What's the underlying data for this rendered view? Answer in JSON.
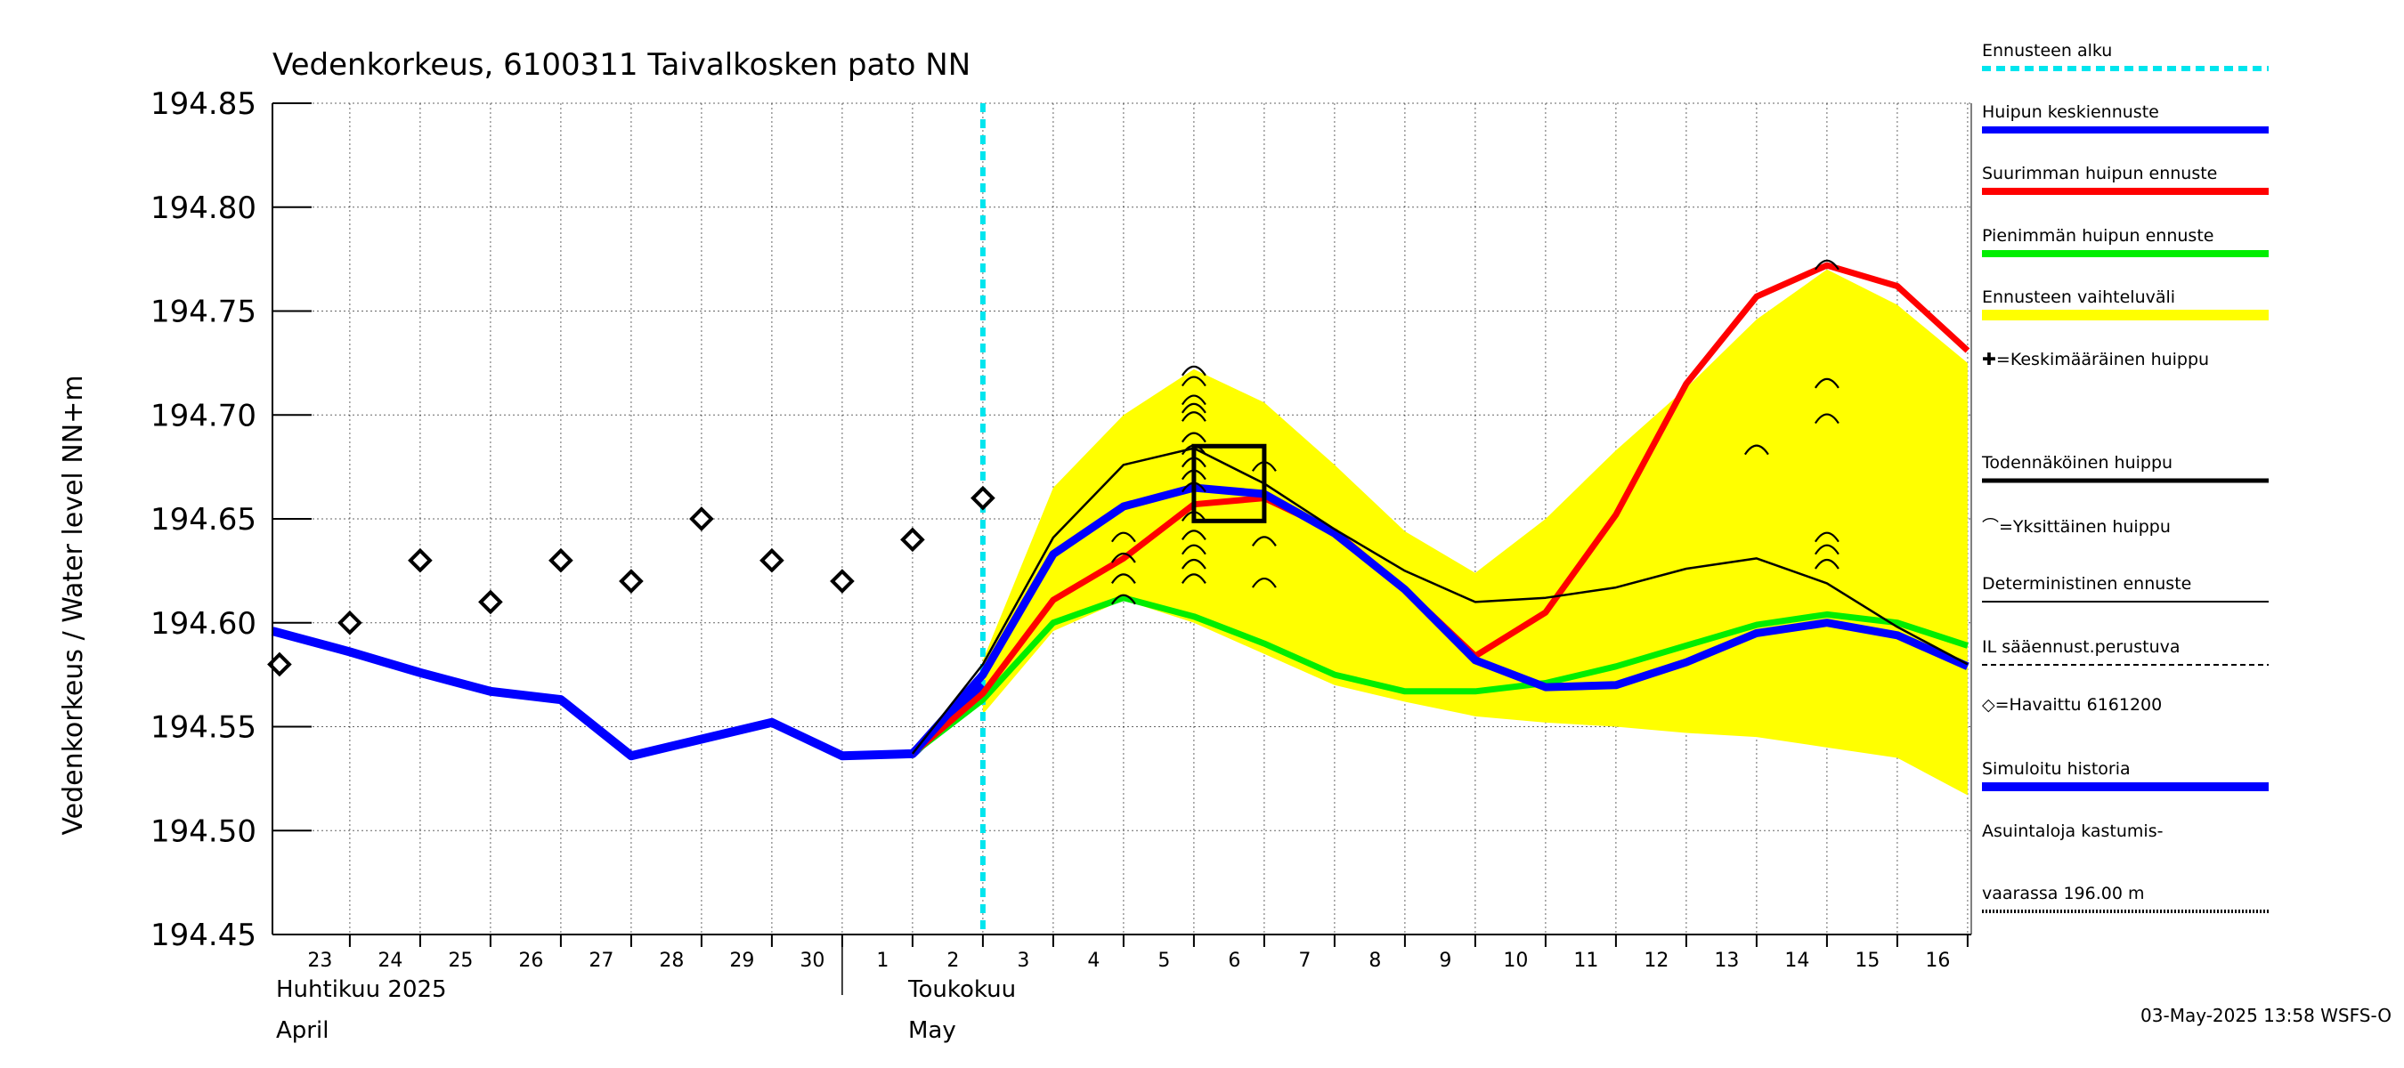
{
  "chart_data": {
    "type": "line",
    "title": "Vedenkorkeus, 6100311 Taivalkosken pato NN",
    "ylabel": "Vedenkorkeus / Water level   NN+m",
    "ylim": [
      194.45,
      194.85
    ],
    "yticks": [
      "194.45",
      "194.50",
      "194.55",
      "194.60",
      "194.65",
      "194.70",
      "194.75",
      "194.80",
      "194.85"
    ],
    "x_range_days": [
      -0.1,
      24.0
    ],
    "x_tick_labels": [
      "23",
      "24",
      "25",
      "26",
      "27",
      "28",
      "29",
      "30",
      "1",
      "2",
      "3",
      "4",
      "5",
      "6",
      "7",
      "8",
      "9",
      "10",
      "11",
      "12",
      "13",
      "14",
      "15",
      "16"
    ],
    "months": [
      {
        "fi": "Huhtikuu  2025",
        "en": "April"
      },
      {
        "fi": "Toukokuu",
        "en": "May"
      }
    ],
    "forecast_start_day": 10.0,
    "grid": true,
    "legend_position": "right",
    "series": [
      {
        "name": "Ennusteen vaihteluväli",
        "kind": "band",
        "color": "#ffff00",
        "x": [
          10.0,
          11.0,
          12.0,
          13.0,
          14.0,
          15.0,
          16.0,
          17.0,
          18.0,
          19.0,
          20.0,
          21.0,
          22.0,
          23.0,
          24.0
        ],
        "upper": [
          194.582,
          194.665,
          194.7,
          194.722,
          194.706,
          194.676,
          194.644,
          194.624,
          194.65,
          194.683,
          194.713,
          194.746,
          194.77,
          194.753,
          194.725
        ],
        "lower": [
          194.556,
          194.596,
          194.611,
          194.6,
          194.585,
          194.57,
          194.562,
          194.555,
          194.552,
          194.55,
          194.547,
          194.545,
          194.54,
          194.535,
          194.517
        ]
      },
      {
        "name": "Simuloitu historia",
        "kind": "line",
        "color": "#0000ff",
        "x": [
          -0.1,
          1.0,
          2.0,
          3.0,
          4.0,
          5.0,
          6.0,
          7.0,
          8.0,
          9.0,
          10.0
        ],
        "y": [
          194.596,
          194.586,
          194.576,
          194.567,
          194.563,
          194.536,
          194.544,
          194.552,
          194.536,
          194.537,
          194.57
        ]
      },
      {
        "name": "Suurimman huipun ennuste",
        "kind": "line",
        "color": "#ff0000",
        "x": [
          9.0,
          10.0,
          11.0,
          12.0,
          13.0,
          14.0,
          15.0,
          16.0,
          17.0,
          18.0,
          19.0,
          20.0,
          21.0,
          22.0,
          23.0,
          24.0
        ],
        "y": [
          194.537,
          194.566,
          194.611,
          194.631,
          194.657,
          194.66,
          194.644,
          194.616,
          194.584,
          194.605,
          194.652,
          194.715,
          194.757,
          194.772,
          194.762,
          194.731
        ]
      },
      {
        "name": "Pienimmän huipun ennuste",
        "kind": "line",
        "color": "#00ee00",
        "x": [
          9.0,
          10.0,
          11.0,
          12.0,
          13.0,
          14.0,
          15.0,
          16.0,
          17.0,
          18.0,
          19.0,
          20.0,
          21.0,
          22.0,
          23.0,
          24.0
        ],
        "y": [
          194.537,
          194.563,
          194.6,
          194.612,
          194.603,
          194.59,
          194.575,
          194.567,
          194.567,
          194.571,
          194.579,
          194.589,
          194.599,
          194.604,
          194.6,
          194.589
        ]
      },
      {
        "name": "Huipun keskiennuste",
        "kind": "line",
        "color": "#0000ff",
        "x": [
          9.0,
          10.0,
          11.0,
          12.0,
          13.0,
          14.0,
          15.0,
          16.0,
          17.0,
          18.0,
          19.0,
          20.0,
          21.0,
          22.0,
          23.0,
          24.0
        ],
        "y": [
          194.537,
          194.575,
          194.633,
          194.656,
          194.665,
          194.662,
          194.643,
          194.616,
          194.582,
          194.569,
          194.57,
          194.581,
          194.595,
          194.6,
          194.594,
          194.579
        ]
      },
      {
        "name": "Deterministinen ennuste",
        "kind": "line",
        "color": "#000000",
        "x": [
          9.0,
          10.0,
          11.0,
          12.0,
          13.0,
          14.0,
          15.0,
          16.0,
          17.0,
          18.0,
          19.0,
          20.0,
          21.0,
          22.0,
          23.0,
          24.0
        ],
        "y": [
          194.537,
          194.58,
          194.641,
          194.676,
          194.684,
          194.667,
          194.645,
          194.625,
          194.61,
          194.612,
          194.617,
          194.626,
          194.631,
          194.619,
          194.598,
          194.58
        ]
      },
      {
        "name": "=Havaittu 6161200",
        "kind": "markers",
        "marker": "diamond",
        "color": "#000000",
        "x": [
          0.0,
          1.0,
          2.0,
          3.0,
          4.0,
          5.0,
          6.0,
          7.0,
          8.0,
          9.0,
          10.0
        ],
        "y": [
          194.58,
          194.6,
          194.63,
          194.61,
          194.63,
          194.62,
          194.65,
          194.63,
          194.62,
          194.64,
          194.66
        ]
      },
      {
        "name": "=Yksittäinen huippu",
        "kind": "markers",
        "marker": "arc",
        "color": "#000000",
        "x": [
          12.0,
          12.0,
          12.0,
          12.0,
          13.0,
          13.0,
          13.0,
          13.0,
          13.0,
          13.0,
          13.0,
          13.0,
          13.0,
          13.0,
          13.0,
          13.0,
          13.0,
          13.0,
          13.0,
          14.0,
          14.0,
          14.0,
          21.0,
          22.0,
          22.0,
          22.0,
          22.0,
          22.0,
          22.0
        ],
        "y": [
          194.612,
          194.622,
          194.632,
          194.642,
          194.722,
          194.717,
          194.708,
          194.704,
          194.7,
          194.69,
          194.684,
          194.678,
          194.672,
          194.666,
          194.652,
          194.643,
          194.636,
          194.629,
          194.622,
          194.676,
          194.64,
          194.62,
          194.684,
          194.773,
          194.716,
          194.699,
          194.642,
          194.636,
          194.629
        ]
      },
      {
        "name": "Todennäköinen huippu",
        "kind": "box",
        "color": "#000000",
        "x": [
          13.0,
          14.0
        ],
        "y": [
          194.649,
          194.685
        ]
      }
    ],
    "legend": [
      {
        "label": "Ennusteen alku",
        "style": "dashed",
        "color": "#00e5ee",
        "width": 6
      },
      {
        "label": "Huipun keskiennuste",
        "style": "solid",
        "color": "#0000ff",
        "width": 8
      },
      {
        "label": "Suurimman huipun ennuste",
        "style": "solid",
        "color": "#ff0000",
        "width": 8
      },
      {
        "label": "Pienimmän huipun ennuste",
        "style": "solid",
        "color": "#00ee00",
        "width": 8
      },
      {
        "label": "Ennusteen vaihteluväli",
        "style": "solid",
        "color": "#ffff00",
        "width": 12
      },
      {
        "label": "✚=Keskimääräinen huippu",
        "style": "none",
        "color": "#000000",
        "width": 0
      },
      {
        "label": "Todennäköinen huippu",
        "style": "solid",
        "color": "#000000",
        "width": 5
      },
      {
        "label": "⌒=Yksittäinen huippu",
        "style": "none",
        "color": "#000000",
        "width": 0
      },
      {
        "label": "Deterministinen ennuste",
        "style": "solid",
        "color": "#000000",
        "width": 2
      },
      {
        "label": "IL sääennust.perustuva",
        "style": "dashed",
        "color": "#000000",
        "width": 2
      },
      {
        "label": "◇=Havaittu 6161200",
        "style": "none",
        "color": "#000000",
        "width": 0
      },
      {
        "label": "Simuloitu historia",
        "style": "solid",
        "color": "#0000ff",
        "width": 10
      },
      {
        "label": "Asuintaloja kastumis-",
        "style": "none",
        "color": "#000000",
        "width": 0
      },
      {
        "label": "vaarassa 196.00 m",
        "style": "dotted",
        "color": "#000000",
        "width": 4
      }
    ]
  },
  "footer": "03-May-2025 13:58 WSFS-O"
}
